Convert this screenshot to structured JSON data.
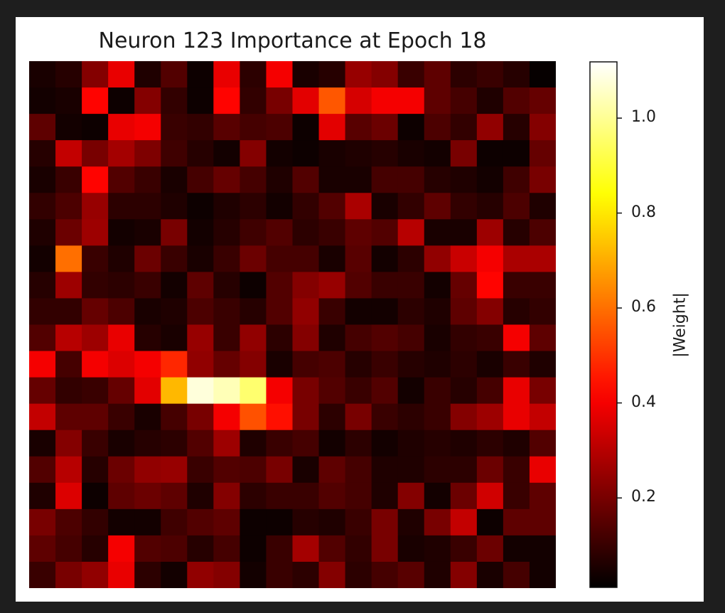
{
  "chart_data": {
    "type": "heatmap",
    "title": "Neuron 123 Importance at Epoch 18",
    "colormap": "hot",
    "colorbar": {
      "label": "|Weight|",
      "range": [
        0.01,
        1.12
      ],
      "ticks": [
        0.2,
        0.4,
        0.6,
        0.8,
        1.0
      ],
      "tick_labels": [
        "0.2",
        "0.4",
        "0.6",
        "0.8",
        "1.0"
      ]
    },
    "rows": 20,
    "cols": 20,
    "values": [
      [
        0.05,
        0.07,
        0.22,
        0.38,
        0.06,
        0.14,
        0.03,
        0.38,
        0.08,
        0.4,
        0.05,
        0.07,
        0.25,
        0.22,
        0.1,
        0.16,
        0.08,
        0.1,
        0.07,
        0.02
      ],
      [
        0.04,
        0.05,
        0.42,
        0.03,
        0.22,
        0.09,
        0.03,
        0.42,
        0.09,
        0.2,
        0.37,
        0.56,
        0.35,
        0.4,
        0.4,
        0.16,
        0.12,
        0.06,
        0.14,
        0.17
      ],
      [
        0.16,
        0.04,
        0.03,
        0.38,
        0.4,
        0.1,
        0.09,
        0.15,
        0.12,
        0.13,
        0.03,
        0.37,
        0.15,
        0.18,
        0.03,
        0.13,
        0.09,
        0.24,
        0.07,
        0.22
      ],
      [
        0.07,
        0.32,
        0.2,
        0.27,
        0.21,
        0.11,
        0.07,
        0.04,
        0.22,
        0.04,
        0.03,
        0.05,
        0.06,
        0.07,
        0.05,
        0.04,
        0.2,
        0.03,
        0.03,
        0.17
      ],
      [
        0.05,
        0.1,
        0.42,
        0.14,
        0.1,
        0.05,
        0.12,
        0.17,
        0.12,
        0.06,
        0.14,
        0.05,
        0.05,
        0.12,
        0.12,
        0.07,
        0.06,
        0.04,
        0.11,
        0.2
      ],
      [
        0.09,
        0.13,
        0.25,
        0.08,
        0.08,
        0.06,
        0.03,
        0.06,
        0.08,
        0.04,
        0.09,
        0.14,
        0.28,
        0.05,
        0.09,
        0.16,
        0.09,
        0.07,
        0.13,
        0.06
      ],
      [
        0.06,
        0.18,
        0.26,
        0.04,
        0.05,
        0.2,
        0.04,
        0.07,
        0.11,
        0.14,
        0.08,
        0.1,
        0.16,
        0.14,
        0.3,
        0.05,
        0.05,
        0.26,
        0.07,
        0.13
      ],
      [
        0.04,
        0.6,
        0.1,
        0.06,
        0.18,
        0.1,
        0.05,
        0.1,
        0.18,
        0.12,
        0.12,
        0.05,
        0.15,
        0.04,
        0.08,
        0.24,
        0.33,
        0.4,
        0.28,
        0.28
      ],
      [
        0.07,
        0.26,
        0.09,
        0.08,
        0.1,
        0.04,
        0.16,
        0.07,
        0.03,
        0.14,
        0.22,
        0.25,
        0.14,
        0.1,
        0.1,
        0.04,
        0.17,
        0.42,
        0.1,
        0.1
      ],
      [
        0.09,
        0.09,
        0.17,
        0.13,
        0.05,
        0.06,
        0.13,
        0.1,
        0.07,
        0.14,
        0.24,
        0.1,
        0.04,
        0.04,
        0.08,
        0.06,
        0.16,
        0.22,
        0.07,
        0.09
      ],
      [
        0.14,
        0.3,
        0.26,
        0.38,
        0.07,
        0.05,
        0.25,
        0.1,
        0.24,
        0.08,
        0.22,
        0.06,
        0.12,
        0.14,
        0.12,
        0.05,
        0.09,
        0.1,
        0.4,
        0.16
      ],
      [
        0.4,
        0.12,
        0.4,
        0.36,
        0.4,
        0.48,
        0.24,
        0.17,
        0.22,
        0.05,
        0.12,
        0.13,
        0.07,
        0.1,
        0.07,
        0.06,
        0.08,
        0.05,
        0.1,
        0.06
      ],
      [
        0.17,
        0.09,
        0.1,
        0.17,
        0.37,
        0.72,
        1.08,
        1.04,
        0.96,
        0.4,
        0.2,
        0.14,
        0.1,
        0.14,
        0.04,
        0.1,
        0.07,
        0.12,
        0.38,
        0.2
      ],
      [
        0.32,
        0.16,
        0.16,
        0.1,
        0.05,
        0.12,
        0.2,
        0.4,
        0.55,
        0.44,
        0.2,
        0.08,
        0.2,
        0.1,
        0.08,
        0.1,
        0.22,
        0.26,
        0.38,
        0.32
      ],
      [
        0.05,
        0.22,
        0.1,
        0.05,
        0.07,
        0.08,
        0.14,
        0.26,
        0.06,
        0.1,
        0.12,
        0.04,
        0.08,
        0.04,
        0.06,
        0.07,
        0.06,
        0.08,
        0.06,
        0.14
      ],
      [
        0.14,
        0.3,
        0.07,
        0.18,
        0.24,
        0.25,
        0.1,
        0.14,
        0.13,
        0.2,
        0.05,
        0.16,
        0.12,
        0.06,
        0.06,
        0.08,
        0.08,
        0.18,
        0.1,
        0.38
      ],
      [
        0.06,
        0.36,
        0.03,
        0.16,
        0.18,
        0.16,
        0.06,
        0.22,
        0.08,
        0.1,
        0.1,
        0.14,
        0.12,
        0.06,
        0.22,
        0.04,
        0.18,
        0.34,
        0.1,
        0.16
      ],
      [
        0.2,
        0.13,
        0.09,
        0.04,
        0.04,
        0.11,
        0.14,
        0.16,
        0.03,
        0.03,
        0.07,
        0.06,
        0.1,
        0.2,
        0.06,
        0.2,
        0.32,
        0.03,
        0.16,
        0.16
      ],
      [
        0.16,
        0.12,
        0.07,
        0.4,
        0.14,
        0.13,
        0.07,
        0.12,
        0.03,
        0.1,
        0.27,
        0.14,
        0.09,
        0.2,
        0.05,
        0.06,
        0.1,
        0.18,
        0.04,
        0.04
      ],
      [
        0.1,
        0.2,
        0.24,
        0.38,
        0.08,
        0.04,
        0.24,
        0.22,
        0.04,
        0.1,
        0.08,
        0.22,
        0.08,
        0.12,
        0.15,
        0.06,
        0.22,
        0.05,
        0.12,
        0.04
      ]
    ]
  }
}
